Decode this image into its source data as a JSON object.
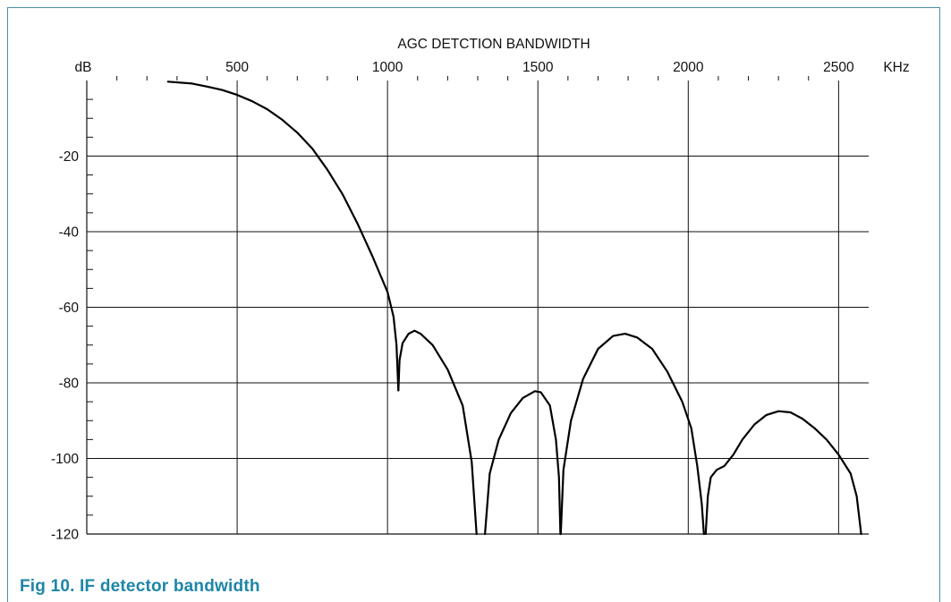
{
  "chart_data": {
    "type": "line",
    "title": "AGC DETCTION BANDWIDTH",
    "ylabel": "dB",
    "xunit": "KHz",
    "xlim": [
      0,
      2600
    ],
    "ylim": [
      -120,
      0
    ],
    "x_ticks": [
      500,
      1000,
      1500,
      2000,
      2500
    ],
    "y_ticks": [
      -20,
      -40,
      -60,
      -80,
      -100,
      -120
    ],
    "x_tick_labels": [
      "500",
      "1000",
      "1500",
      "2000",
      "2500"
    ],
    "y_tick_labels": [
      "-20",
      "-40",
      "-60",
      "-80",
      "-100",
      "-120"
    ],
    "grid": true,
    "series": [
      {
        "segments": [
          [
            [
              270,
              -0.3
            ],
            [
              350,
              -0.8
            ],
            [
              400,
              -1.6
            ],
            [
              450,
              -2.5
            ],
            [
              500,
              -3.8
            ],
            [
              550,
              -5.5
            ],
            [
              600,
              -7.6
            ],
            [
              650,
              -10.4
            ],
            [
              700,
              -13.8
            ],
            [
              750,
              -18
            ],
            [
              800,
              -23.6
            ],
            [
              850,
              -30
            ],
            [
              900,
              -37.8
            ],
            [
              950,
              -46.5
            ],
            [
              1000,
              -56
            ],
            [
              1020,
              -62.5
            ],
            [
              1030,
              -70
            ],
            [
              1036,
              -82
            ]
          ],
          [
            [
              1036,
              -82
            ],
            [
              1040,
              -74
            ],
            [
              1050,
              -69.5
            ],
            [
              1070,
              -67
            ],
            [
              1090,
              -66.2
            ],
            [
              1110,
              -67
            ],
            [
              1150,
              -70
            ],
            [
              1200,
              -76.5
            ],
            [
              1250,
              -86
            ],
            [
              1280,
              -101
            ],
            [
              1296,
              -120
            ]
          ],
          [
            [
              1324,
              -120
            ],
            [
              1340,
              -104
            ],
            [
              1370,
              -95
            ],
            [
              1410,
              -88
            ],
            [
              1450,
              -84
            ],
            [
              1490,
              -82.2
            ],
            [
              1510,
              -82.5
            ],
            [
              1540,
              -86
            ],
            [
              1560,
              -95
            ],
            [
              1570,
              -105
            ],
            [
              1575,
              -120
            ]
          ],
          [
            [
              1576,
              -120
            ],
            [
              1585,
              -103
            ],
            [
              1610,
              -90
            ],
            [
              1650,
              -79
            ],
            [
              1700,
              -71
            ],
            [
              1750,
              -67.6
            ],
            [
              1790,
              -67
            ],
            [
              1830,
              -68
            ],
            [
              1880,
              -71
            ],
            [
              1930,
              -77
            ],
            [
              1980,
              -85
            ],
            [
              2010,
              -92
            ],
            [
              2030,
              -102
            ],
            [
              2045,
              -112
            ],
            [
              2052,
              -120
            ]
          ],
          [
            [
              2058,
              -120
            ],
            [
              2065,
              -110
            ],
            [
              2075,
              -105
            ],
            [
              2095,
              -103
            ],
            [
              2120,
              -102
            ],
            [
              2150,
              -99
            ],
            [
              2180,
              -95
            ],
            [
              2220,
              -91
            ],
            [
              2260,
              -88.5
            ],
            [
              2300,
              -87.5
            ],
            [
              2340,
              -87.8
            ],
            [
              2380,
              -89.5
            ],
            [
              2420,
              -92
            ],
            [
              2460,
              -95
            ],
            [
              2500,
              -99
            ],
            [
              2540,
              -104
            ],
            [
              2560,
              -110
            ],
            [
              2575,
              -120
            ]
          ]
        ]
      }
    ]
  },
  "caption": "Fig 10. IF detector bandwidth",
  "colors": {
    "frame": "#4a8fa3",
    "caption": "#1d86a8",
    "curve": "#000000",
    "grid": "#111111"
  }
}
